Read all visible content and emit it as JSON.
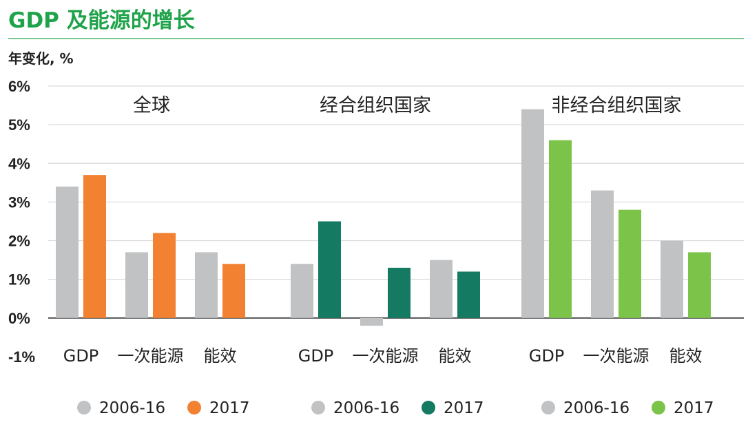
{
  "chart_data": {
    "type": "bar",
    "title": "GDP 及能源的增长",
    "ylabel": "年变化, %",
    "ylim": [
      -1,
      6
    ],
    "yticks": [
      "-1%",
      "0%",
      "1%",
      "2%",
      "3%",
      "4%",
      "5%",
      "6%"
    ],
    "grid": true,
    "legend_position": "bottom",
    "panels": [
      {
        "title": "全球",
        "categories": [
          "GDP",
          "一次能源",
          "能效"
        ],
        "series": [
          {
            "name": "2006-16",
            "color": "#c1c2c4",
            "values": [
              3.4,
              1.7,
              1.7
            ]
          },
          {
            "name": "2017",
            "color": "#f28132",
            "values": [
              3.7,
              2.2,
              1.4
            ]
          }
        ]
      },
      {
        "title": "经合组织国家",
        "categories": [
          "GDP",
          "一次能源",
          "能效"
        ],
        "series": [
          {
            "name": "2006-16",
            "color": "#c1c2c4",
            "values": [
              1.4,
              -0.2,
              1.5
            ]
          },
          {
            "name": "2017",
            "color": "#147a62",
            "values": [
              2.5,
              1.3,
              1.2
            ]
          }
        ]
      },
      {
        "title": "非经合组织国家",
        "categories": [
          "GDP",
          "一次能源",
          "能效"
        ],
        "series": [
          {
            "name": "2006-16",
            "color": "#c1c2c4",
            "values": [
              5.4,
              3.3,
              2.0
            ]
          },
          {
            "name": "2017",
            "color": "#7cc34a",
            "values": [
              4.6,
              2.8,
              1.7
            ]
          }
        ]
      }
    ]
  },
  "colors": {
    "title": "#1fa34a",
    "title_rule": "#4cb86d",
    "grid": "#d9d9d9",
    "axis": "#555555",
    "text": "#222222"
  }
}
